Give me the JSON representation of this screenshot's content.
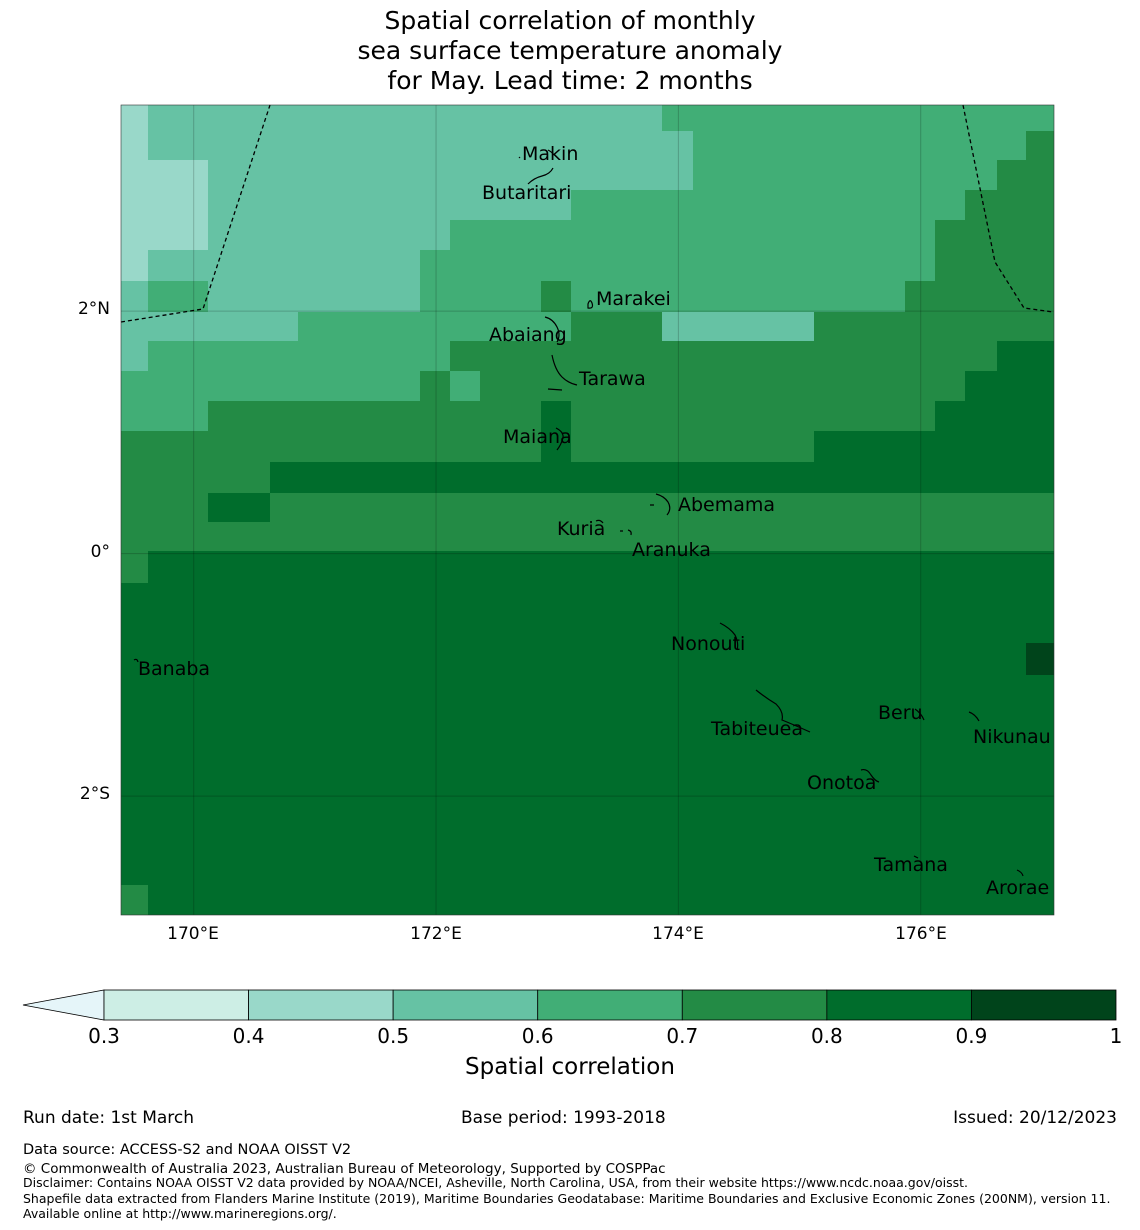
{
  "title": {
    "line1": "Spatial correlation of monthly",
    "line2": "sea surface temperature anomaly",
    "line3": "for May. Lead time: 2 months"
  },
  "map": {
    "lon_range": [
      169.4,
      177.1
    ],
    "lat_range": [
      -2.98,
      3.7
    ],
    "x_ticks": [
      {
        "lon": 170,
        "label": "170°E"
      },
      {
        "lon": 172,
        "label": "172°E"
      },
      {
        "lon": 174,
        "label": "174°E"
      },
      {
        "lon": 176,
        "label": "176°E"
      }
    ],
    "y_ticks": [
      {
        "lat": 2,
        "label": "2°N"
      },
      {
        "lat": 0,
        "label": "0°"
      },
      {
        "lat": -2,
        "label": "2°S"
      }
    ],
    "islands": [
      {
        "name": "Makin",
        "lon": 173.0,
        "lat": 3.2
      },
      {
        "name": "Butaritari",
        "lon": 172.8,
        "lat": 3.05
      },
      {
        "name": "Marakei",
        "lon": 173.3,
        "lat": 2.0
      },
      {
        "name": "Abaiang",
        "lon": 173.0,
        "lat": 1.85
      },
      {
        "name": "Tarawa",
        "lon": 173.1,
        "lat": 1.4
      },
      {
        "name": "Maiana",
        "lon": 173.0,
        "lat": 0.9
      },
      {
        "name": "Abemama",
        "lon": 173.9,
        "lat": 0.4
      },
      {
        "name": "Kuria",
        "lon": 173.4,
        "lat": 0.22
      },
      {
        "name": "Aranuka",
        "lon": 173.6,
        "lat": 0.17
      },
      {
        "name": "Banaba",
        "lon": 169.55,
        "lat": -0.88
      },
      {
        "name": "Nonouti",
        "lon": 174.4,
        "lat": -0.65
      },
      {
        "name": "Tabiteuea",
        "lon": 174.8,
        "lat": -1.2
      },
      {
        "name": "Beru",
        "lon": 176.0,
        "lat": -1.33
      },
      {
        "name": "Nikunau",
        "lon": 176.45,
        "lat": -1.37
      },
      {
        "name": "Onotoa",
        "lon": 175.55,
        "lat": -1.8
      },
      {
        "name": "Tamana",
        "lon": 175.98,
        "lat": -2.5
      },
      {
        "name": "Arorae",
        "lon": 176.82,
        "lat": -2.64
      }
    ]
  },
  "colorbar": {
    "title": "Spatial correlation",
    "ticks": [
      "0.3",
      "0.4",
      "0.5",
      "0.6",
      "0.7",
      "0.8",
      "0.9",
      "1"
    ],
    "colors": [
      "#cdeee5",
      "#99d8c9",
      "#66c2a4",
      "#41ae76",
      "#238b45",
      "#006d2c",
      "#00441b"
    ],
    "under_color": "#e5f5f9"
  },
  "footer": {
    "run_date": "Run date: 1st March",
    "base_period": "Base period: 1993-2018",
    "issued": "Issued: 20/12/2023",
    "data_source": "Data source: ACCESS-S2 and NOAA OISST V2",
    "copyright": "© Commonwealth of Australia 2023, Australian Bureau of Meteorology, Supported by COSPPac",
    "disclaimer": "Disclaimer: Contains NOAA OISST V2 data provided by NOAA/NCEI, Asheville, North Carolina, USA, from their website https://www.ncdc.noaa.gov/oisst.",
    "shapefile": "Shapefile data extracted from Flanders Marine Institute (2019), Maritime Boundaries Geodatabase: Maritime Boundaries and Exclusive Economic Zones (200NM), version 11. Available online at http://www.marineregions.org/."
  }
}
